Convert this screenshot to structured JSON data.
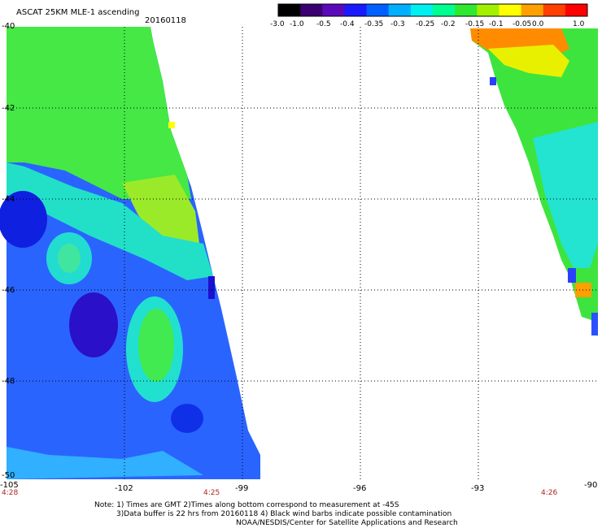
{
  "header": {
    "product": "ASCAT 25KM MLE-1 ascending",
    "date": "20160118"
  },
  "colorbar": {
    "ticks": [
      "-3.0",
      "-1.0",
      "-0.5",
      "-0.4",
      "-0.35",
      "-0.3",
      "-0.25",
      "-0.2",
      "-0.15",
      "-0.1",
      "-0.05",
      "0.0",
      "1.0"
    ],
    "colors": [
      "#000000",
      "#3b0070",
      "#5a0ab8",
      "#1a1aff",
      "#0060ff",
      "#00b0ff",
      "#00f0f0",
      "#00ff90",
      "#30e830",
      "#a0f000",
      "#ffff00",
      "#ffa000",
      "#ff4000",
      "#ff0000"
    ]
  },
  "map": {
    "lat_labels": [
      "-40",
      "-42",
      "-44",
      "-46",
      "-48",
      "-50"
    ],
    "lon_labels": [
      "-105",
      "-102",
      "-99",
      "-96",
      "-93",
      "-90"
    ],
    "times": [
      "4:28",
      "4:25",
      "4:26"
    ],
    "lon_range": [
      -105,
      -90
    ],
    "lat_range": [
      -50,
      -40
    ]
  },
  "notes": {
    "line1": "Note: 1) Times are GMT 2)Times along bottom correspond to measurement at -45S",
    "line2": "3)Data buffer is 22 hrs from 20160118 4) Black wind barbs indicate possible contamination",
    "line3": "NOAA/NESDIS/Center for Satellite Applications and Research"
  }
}
